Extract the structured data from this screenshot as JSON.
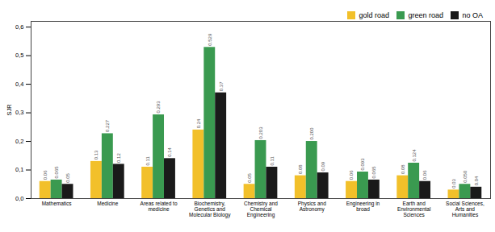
{
  "chart_data": {
    "type": "bar",
    "categories": [
      "Mathematics",
      "Medicine",
      "Areas related to\nmedicine",
      "Biochemistry,\nGenetics and\nMolecular Biology",
      "Chemistry and\nChemical\nEngineering",
      "Physics and\nAstronomy",
      "Engineering in\nbroad",
      "Earth and\nEnvironmental\nSciences",
      "Social Sciences,\nArts and\nHumanities"
    ],
    "series": [
      {
        "name": "gold road",
        "color": "#f2c02a",
        "values": [
          0.06,
          0.13,
          0.11,
          0.24,
          0.05,
          0.08,
          0.06,
          0.08,
          0.03
        ],
        "value_labels": [
          "0.06",
          "0.13",
          "0.11",
          "0.24",
          "0.05",
          "0.08",
          "0.06",
          "0.08",
          "0.03"
        ]
      },
      {
        "name": "green road",
        "color": "#3a9a50",
        "values": [
          0.065,
          0.227,
          0.293,
          0.529,
          0.203,
          0.2,
          0.093,
          0.124,
          0.05
        ],
        "value_labels": [
          "0.065",
          "0.227",
          "0.293",
          "0.529",
          "0.203",
          "0.200",
          "0.093",
          "0.124",
          "0.050"
        ]
      },
      {
        "name": "no OA",
        "color": "#1a1a1a",
        "values": [
          0.05,
          0.12,
          0.14,
          0.37,
          0.11,
          0.09,
          0.065,
          0.06,
          0.04
        ],
        "value_labels": [
          "0.05",
          "0.12",
          "0.14",
          "0.37",
          "0.11",
          "0.09",
          "0.065",
          "0.06",
          "0.04"
        ]
      }
    ],
    "ylabel": "SJR",
    "ylim": [
      0,
      0.62
    ],
    "yticks": [
      {
        "value": 0.0,
        "label": "0,0"
      },
      {
        "value": 0.1,
        "label": "0,1"
      },
      {
        "value": 0.2,
        "label": "0,2"
      },
      {
        "value": 0.3,
        "label": "0,3"
      },
      {
        "value": 0.4,
        "label": "0,4"
      },
      {
        "value": 0.5,
        "label": "0,5"
      },
      {
        "value": 0.6,
        "label": "0,6"
      }
    ],
    "data_labels": true,
    "legend": "upper right"
  }
}
